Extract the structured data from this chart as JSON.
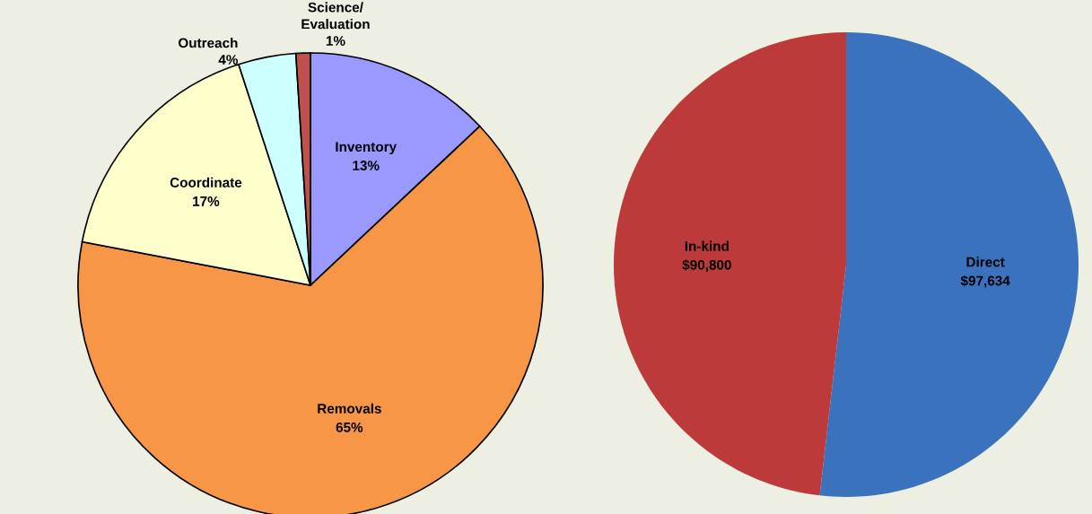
{
  "chart_data": [
    {
      "type": "pie",
      "categories": [
        "Inventory",
        "Removals",
        "Coordinate",
        "Outreach",
        "Science/\nEvaluation"
      ],
      "values": [
        13,
        65,
        17,
        4,
        1
      ],
      "value_labels": [
        "13%",
        "65%",
        "17%",
        "4%",
        "1%"
      ],
      "colors": [
        "#9999ff",
        "#f79646",
        "#ffffcc",
        "#ccffff",
        "#c0504d"
      ]
    },
    {
      "type": "pie",
      "categories": [
        "Direct",
        "In-kind"
      ],
      "values": [
        97634,
        90800
      ],
      "value_labels": [
        "$97,634",
        "$90,800"
      ],
      "colors": [
        "#3a72bd",
        "#bd3a3a"
      ]
    }
  ]
}
